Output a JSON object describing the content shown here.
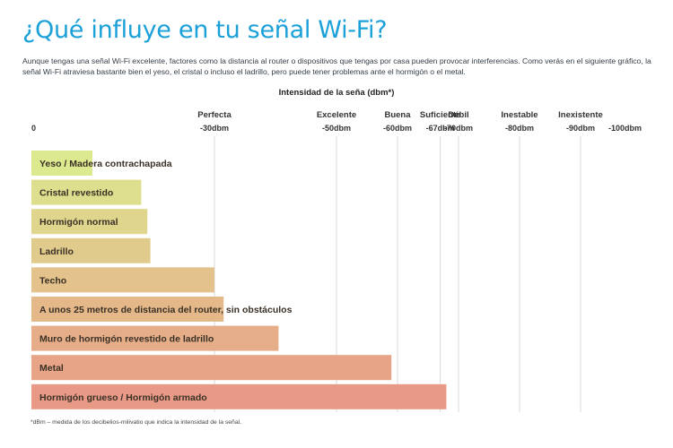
{
  "header": {
    "title": "¿Qué influye en tu señal Wi-Fi?",
    "intro": "Aunque tengas una señal Wi-Fi excelente, factores como la distancia al router o dispositivos que tengas por casa pueden provocar interferencias. Como verás en el siguiente gráfico, la señal Wi-Fi atraviesa bastante bien el yeso, el cristal o incluso el ladrillo, pero puede tener problemas ante el hormigón o el metal."
  },
  "footnote": "*dBm – medida de los decibelios-milivatio que indica la intensidad de la señal.",
  "chart_data": {
    "type": "bar",
    "orientation": "horizontal",
    "xlabel": "Intensidad de la seña (dbm*)",
    "xlim": [
      0,
      -100
    ],
    "x_ticks": [
      {
        "value": 0,
        "label": "0",
        "quality": ""
      },
      {
        "value": -30,
        "label": "-30dbm",
        "quality": "Perfecta"
      },
      {
        "value": -50,
        "label": "-50dbm",
        "quality": "Excelente"
      },
      {
        "value": -60,
        "label": "-60dbm",
        "quality": "Buena"
      },
      {
        "value": -67,
        "label": "-67dbm",
        "quality": "Suficiente"
      },
      {
        "value": -70,
        "label": "-70dbm",
        "quality": "Débil"
      },
      {
        "value": -80,
        "label": "-80dbm",
        "quality": "Inestable"
      },
      {
        "value": -90,
        "label": "-90dbm",
        "quality": "Inexistente"
      },
      {
        "value": -100,
        "label": "-100dbm",
        "quality": ""
      }
    ],
    "categories": [
      "Yeso / Madera contrachapada",
      "Cristal revestido",
      "Hormigón normal",
      "Ladrillo",
      "Techo",
      "A unos 25 metros de distancia del router, sin obstáculos",
      "Muro de hormigón revestido de ladrillo",
      "Metal",
      "Hormigón grueso / Hormigón armado"
    ],
    "values": [
      -10,
      -18,
      -19,
      -19.5,
      -30,
      -31.5,
      -40.5,
      -59,
      -68
    ],
    "grid": true,
    "colors": {
      "gradient_start": "#dde98f",
      "gradient_end": "#e89a86",
      "gridline": "#d9d9d9"
    }
  }
}
